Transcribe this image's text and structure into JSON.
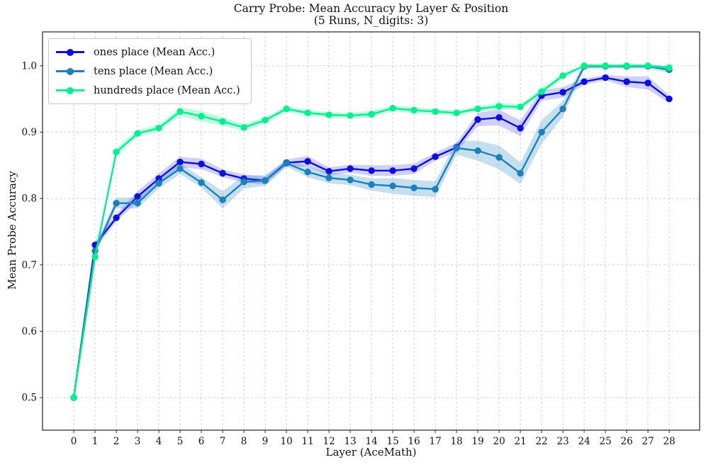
{
  "title": {
    "line1": "Carry Probe: Mean Accuracy by Layer & Position",
    "line2": "(5 Runs, N_digits: 3)"
  },
  "chart_data": {
    "type": "line",
    "title": "Carry Probe: Mean Accuracy by Layer & Position",
    "subtitle": "(5 Runs, N_digits: 3)",
    "xlabel": "Layer (AceMath)",
    "ylabel": "Mean Probe Accuracy",
    "x": [
      0,
      1,
      2,
      3,
      4,
      5,
      6,
      7,
      8,
      9,
      10,
      11,
      12,
      13,
      14,
      15,
      16,
      17,
      18,
      19,
      20,
      21,
      22,
      23,
      24,
      25,
      26,
      27,
      28
    ],
    "y_ticks": [
      0.5,
      0.6,
      0.7,
      0.8,
      0.9,
      1.0
    ],
    "xlim": [
      -1.47,
      29.43
    ],
    "ylim": [
      0.451,
      1.051
    ],
    "grid": true,
    "grid_color": "#d2d2d2",
    "spine_color": "#333333",
    "legend_position": "upper left",
    "series": [
      {
        "id": "ones",
        "name": "ones place (Mean Acc.)",
        "color": "#0d0de0",
        "band_opacity": 0.2,
        "values": [
          0.5,
          0.73,
          0.771,
          0.803,
          0.83,
          0.855,
          0.852,
          0.838,
          0.83,
          0.827,
          0.854,
          0.856,
          0.841,
          0.845,
          0.842,
          0.842,
          0.845,
          0.863,
          0.877,
          0.919,
          0.922,
          0.906,
          0.955,
          0.96,
          0.976,
          0.982,
          0.976,
          0.974,
          0.95
        ],
        "err": [
          0.002,
          0.006,
          0.006,
          0.008,
          0.008,
          0.008,
          0.008,
          0.006,
          0.006,
          0.006,
          0.005,
          0.008,
          0.006,
          0.006,
          0.008,
          0.008,
          0.008,
          0.006,
          0.007,
          0.01,
          0.012,
          0.012,
          0.008,
          0.008,
          0.005,
          0.004,
          0.008,
          0.01,
          0.006
        ]
      },
      {
        "id": "tens",
        "name": "tens place (Mean Acc.)",
        "color": "#1c80bd",
        "band_opacity": 0.25,
        "values": [
          0.5,
          0.721,
          0.793,
          0.793,
          0.823,
          0.845,
          0.824,
          0.798,
          0.825,
          0.827,
          0.853,
          0.84,
          0.831,
          0.828,
          0.821,
          0.819,
          0.816,
          0.814,
          0.876,
          0.872,
          0.862,
          0.838,
          0.9,
          0.935,
          0.999,
          0.999,
          0.999,
          0.999,
          0.994
        ],
        "err": [
          0.002,
          0.006,
          0.008,
          0.008,
          0.008,
          0.008,
          0.008,
          0.013,
          0.01,
          0.008,
          0.005,
          0.008,
          0.008,
          0.008,
          0.009,
          0.012,
          0.012,
          0.012,
          0.01,
          0.015,
          0.018,
          0.016,
          0.018,
          0.012,
          0.004,
          0.003,
          0.003,
          0.003,
          0.005
        ]
      },
      {
        "id": "hundreds",
        "name": "hundreds place (Mean Acc.)",
        "color": "#00f08e",
        "band_opacity": 0.25,
        "values": [
          0.5,
          0.712,
          0.87,
          0.898,
          0.906,
          0.931,
          0.924,
          0.916,
          0.907,
          0.918,
          0.935,
          0.929,
          0.926,
          0.925,
          0.927,
          0.936,
          0.933,
          0.931,
          0.929,
          0.935,
          0.939,
          0.938,
          0.961,
          0.985,
          1.0,
          1.0,
          1.0,
          1.0,
          0.997
        ],
        "err": [
          0.002,
          0.004,
          0.006,
          0.005,
          0.005,
          0.006,
          0.008,
          0.006,
          0.005,
          0.005,
          0.004,
          0.004,
          0.004,
          0.004,
          0.005,
          0.004,
          0.005,
          0.004,
          0.004,
          0.004,
          0.005,
          0.004,
          0.005,
          0.004,
          0.002,
          0.002,
          0.002,
          0.002,
          0.003
        ]
      }
    ]
  }
}
